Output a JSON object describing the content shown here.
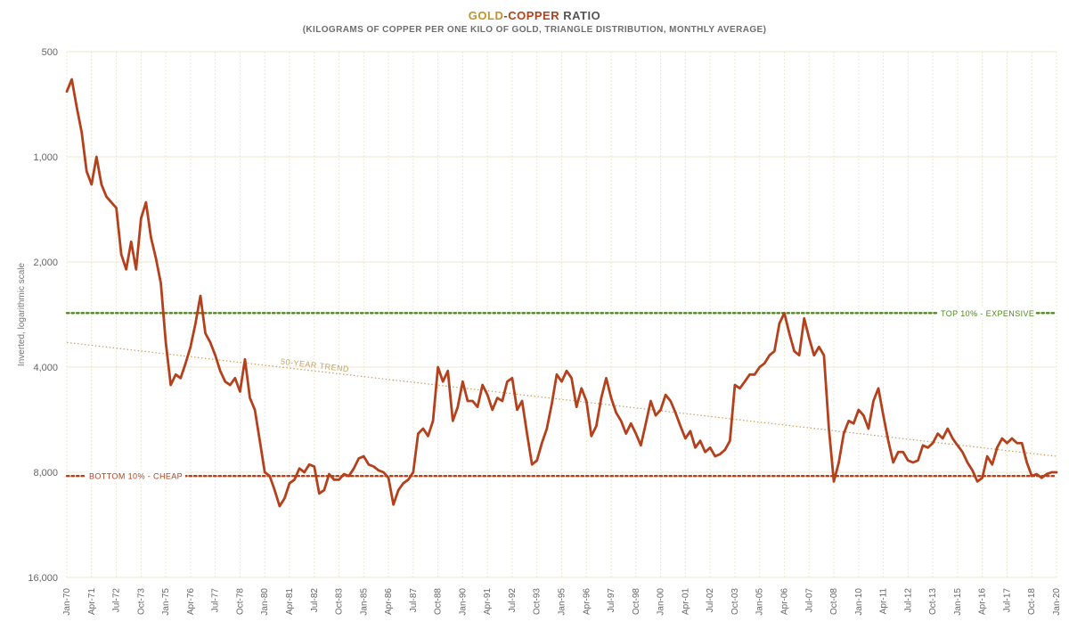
{
  "title_parts": {
    "gold": "GOLD",
    "dash": "-",
    "copper": "COPPER",
    "ratio": " RATIO"
  },
  "subtitle": "(KILOGRAMS OF COPPER PER ONE KILO OF GOLD, TRIANGLE DISTRIBUTION, MONTHLY AVERAGE)",
  "colors": {
    "gold": "#c0952f",
    "copper": "#b5401c",
    "text": "#555555",
    "series": "#b5401c",
    "trend": "#c7a15e",
    "top10": "#4f8a1f",
    "bottom10": "#b5401c",
    "grid": "#ece9cf"
  },
  "chart_data": {
    "type": "line",
    "title": "GOLD-COPPER RATIO",
    "subtitle": "(KILOGRAMS OF COPPER PER ONE KILO OF GOLD, TRIANGLE DISTRIBUTION, MONTHLY AVERAGE)",
    "ylabel": "Inverted, logarithmic scale",
    "yscale": "log2, inverted",
    "ylim": [
      500,
      16000
    ],
    "y_ticks": [
      500,
      1000,
      2000,
      4000,
      8000,
      16000
    ],
    "y_tick_labels": [
      "500",
      "1,000",
      "2,000",
      "4,000",
      "8,000",
      "16,000"
    ],
    "xlim": [
      "1970-01",
      "2020-01"
    ],
    "x_tick_labels": [
      "Jan-70",
      "Apr-71",
      "Jul-72",
      "Oct-73",
      "Jan-75",
      "Apr-76",
      "Jul-77",
      "Oct-78",
      "Jan-80",
      "Apr-81",
      "Jul-82",
      "Oct-83",
      "Jan-85",
      "Apr-86",
      "Jul-87",
      "Oct-88",
      "Jan-90",
      "Apr-91",
      "Jul-92",
      "Oct-93",
      "Jan-95",
      "Apr-96",
      "Jul-97",
      "Oct-98",
      "Jan-00",
      "Apr-01",
      "Jul-02",
      "Oct-03",
      "Jan-05",
      "Apr-06",
      "Jul-07",
      "Oct-08",
      "Jan-10",
      "Apr-11",
      "Jul-12",
      "Oct-13",
      "Jan-15",
      "Apr-16",
      "Jul-17",
      "Oct-18",
      "Jan-20"
    ],
    "grid": true,
    "series": [
      {
        "name": "",
        "points": [
          [
            "1970-01",
            650
          ],
          [
            "1970-04",
            600
          ],
          [
            "1970-07",
            720
          ],
          [
            "1970-10",
            850
          ],
          [
            "1971-01",
            1100
          ],
          [
            "1971-04",
            1200
          ],
          [
            "1971-07",
            1000
          ],
          [
            "1971-10",
            1200
          ],
          [
            "1972-01",
            1300
          ],
          [
            "1972-04",
            1350
          ],
          [
            "1972-07",
            1400
          ],
          [
            "1972-10",
            1900
          ],
          [
            "1973-01",
            2100
          ],
          [
            "1973-04",
            1750
          ],
          [
            "1973-07",
            2100
          ],
          [
            "1973-10",
            1500
          ],
          [
            "1974-01",
            1350
          ],
          [
            "1974-04",
            1700
          ],
          [
            "1974-07",
            1950
          ],
          [
            "1974-10",
            2300
          ],
          [
            "1975-01",
            3400
          ],
          [
            "1975-04",
            4500
          ],
          [
            "1975-07",
            4200
          ],
          [
            "1975-10",
            4300
          ],
          [
            "1976-01",
            3900
          ],
          [
            "1976-04",
            3500
          ],
          [
            "1976-07",
            3000
          ],
          [
            "1976-10",
            2500
          ],
          [
            "1977-01",
            3200
          ],
          [
            "1977-04",
            3400
          ],
          [
            "1977-07",
            3700
          ],
          [
            "1977-10",
            4100
          ],
          [
            "1978-01",
            4400
          ],
          [
            "1978-04",
            4500
          ],
          [
            "1978-07",
            4300
          ],
          [
            "1978-10",
            4700
          ],
          [
            "1979-01",
            3800
          ],
          [
            "1979-04",
            4900
          ],
          [
            "1979-07",
            5300
          ],
          [
            "1979-10",
            6500
          ],
          [
            "1980-01",
            8000
          ],
          [
            "1980-04",
            8200
          ],
          [
            "1980-07",
            9000
          ],
          [
            "1980-10",
            10000
          ],
          [
            "1981-01",
            9500
          ],
          [
            "1981-04",
            8600
          ],
          [
            "1981-07",
            8400
          ],
          [
            "1981-10",
            7800
          ],
          [
            "1982-01",
            8000
          ],
          [
            "1982-04",
            7600
          ],
          [
            "1982-07",
            7700
          ],
          [
            "1982-10",
            9200
          ],
          [
            "1983-01",
            9000
          ],
          [
            "1983-04",
            8100
          ],
          [
            "1983-07",
            8400
          ],
          [
            "1983-10",
            8400
          ],
          [
            "1984-01",
            8100
          ],
          [
            "1984-04",
            8200
          ],
          [
            "1984-07",
            7800
          ],
          [
            "1984-10",
            7300
          ],
          [
            "1985-01",
            7200
          ],
          [
            "1985-04",
            7600
          ],
          [
            "1985-07",
            7700
          ],
          [
            "1985-10",
            7900
          ],
          [
            "1986-01",
            8000
          ],
          [
            "1986-04",
            8300
          ],
          [
            "1986-07",
            9900
          ],
          [
            "1986-10",
            9000
          ],
          [
            "1987-01",
            8600
          ],
          [
            "1987-04",
            8400
          ],
          [
            "1987-07",
            8000
          ],
          [
            "1987-10",
            6200
          ],
          [
            "1988-01",
            6000
          ],
          [
            "1988-04",
            6300
          ],
          [
            "1988-07",
            5700
          ],
          [
            "1988-10",
            4000
          ],
          [
            "1989-01",
            4400
          ],
          [
            "1989-04",
            4100
          ],
          [
            "1989-07",
            5700
          ],
          [
            "1989-10",
            5200
          ],
          [
            "1990-01",
            4400
          ],
          [
            "1990-04",
            5000
          ],
          [
            "1990-07",
            5000
          ],
          [
            "1990-10",
            5200
          ],
          [
            "1991-01",
            4500
          ],
          [
            "1991-04",
            4800
          ],
          [
            "1991-07",
            5300
          ],
          [
            "1991-10",
            4900
          ],
          [
            "1992-01",
            5000
          ],
          [
            "1992-04",
            4400
          ],
          [
            "1992-07",
            4300
          ],
          [
            "1992-10",
            5300
          ],
          [
            "1993-01",
            5000
          ],
          [
            "1993-04",
            6200
          ],
          [
            "1993-07",
            7600
          ],
          [
            "1993-10",
            7400
          ],
          [
            "1994-01",
            6600
          ],
          [
            "1994-04",
            6000
          ],
          [
            "1994-07",
            5100
          ],
          [
            "1994-10",
            4200
          ],
          [
            "1995-01",
            4400
          ],
          [
            "1995-04",
            4100
          ],
          [
            "1995-07",
            4300
          ],
          [
            "1995-10",
            5200
          ],
          [
            "1996-01",
            4600
          ],
          [
            "1996-04",
            5000
          ],
          [
            "1996-07",
            6300
          ],
          [
            "1996-10",
            5900
          ],
          [
            "1997-01",
            4900
          ],
          [
            "1997-04",
            4300
          ],
          [
            "1997-07",
            4900
          ],
          [
            "1997-10",
            5400
          ],
          [
            "1998-01",
            5700
          ],
          [
            "1998-04",
            6200
          ],
          [
            "1998-07",
            5800
          ],
          [
            "1998-10",
            6200
          ],
          [
            "1999-01",
            6700
          ],
          [
            "1999-04",
            5800
          ],
          [
            "1999-07",
            5000
          ],
          [
            "1999-10",
            5500
          ],
          [
            "2000-01",
            5300
          ],
          [
            "2000-04",
            4800
          ],
          [
            "2000-07",
            5000
          ],
          [
            "2000-10",
            5400
          ],
          [
            "2001-01",
            5900
          ],
          [
            "2001-04",
            6400
          ],
          [
            "2001-07",
            6100
          ],
          [
            "2001-10",
            6800
          ],
          [
            "2002-01",
            6500
          ],
          [
            "2002-04",
            7000
          ],
          [
            "2002-07",
            6800
          ],
          [
            "2002-10",
            7200
          ],
          [
            "2003-01",
            7100
          ],
          [
            "2003-04",
            6900
          ],
          [
            "2003-07",
            6500
          ],
          [
            "2003-10",
            4500
          ],
          [
            "2004-01",
            4600
          ],
          [
            "2004-04",
            4400
          ],
          [
            "2004-07",
            4200
          ],
          [
            "2004-10",
            4200
          ],
          [
            "2005-01",
            4000
          ],
          [
            "2005-04",
            3900
          ],
          [
            "2005-07",
            3700
          ],
          [
            "2005-10",
            3600
          ],
          [
            "2006-01",
            3000
          ],
          [
            "2006-04",
            2800
          ],
          [
            "2006-07",
            3200
          ],
          [
            "2006-10",
            3600
          ],
          [
            "2007-01",
            3700
          ],
          [
            "2007-04",
            2900
          ],
          [
            "2007-07",
            3300
          ],
          [
            "2007-10",
            3700
          ],
          [
            "2008-01",
            3500
          ],
          [
            "2008-04",
            3700
          ],
          [
            "2008-07",
            6000
          ],
          [
            "2008-10",
            8500
          ],
          [
            "2009-01",
            7500
          ],
          [
            "2009-04",
            6200
          ],
          [
            "2009-07",
            5700
          ],
          [
            "2009-10",
            5800
          ],
          [
            "2010-01",
            5300
          ],
          [
            "2010-04",
            5500
          ],
          [
            "2010-07",
            6000
          ],
          [
            "2010-10",
            5000
          ],
          [
            "2011-01",
            4600
          ],
          [
            "2011-04",
            5500
          ],
          [
            "2011-07",
            6500
          ],
          [
            "2011-10",
            7500
          ],
          [
            "2012-01",
            7000
          ],
          [
            "2012-04",
            7000
          ],
          [
            "2012-07",
            7400
          ],
          [
            "2012-10",
            7500
          ],
          [
            "2013-01",
            7400
          ],
          [
            "2013-04",
            6700
          ],
          [
            "2013-07",
            6800
          ],
          [
            "2013-10",
            6600
          ],
          [
            "2014-01",
            6200
          ],
          [
            "2014-04",
            6400
          ],
          [
            "2014-07",
            6000
          ],
          [
            "2014-10",
            6400
          ],
          [
            "2015-01",
            6700
          ],
          [
            "2015-04",
            7000
          ],
          [
            "2015-07",
            7500
          ],
          [
            "2015-10",
            7900
          ],
          [
            "2016-01",
            8500
          ],
          [
            "2016-04",
            8300
          ],
          [
            "2016-07",
            7200
          ],
          [
            "2016-10",
            7600
          ],
          [
            "2017-01",
            6800
          ],
          [
            "2017-04",
            6400
          ],
          [
            "2017-07",
            6600
          ],
          [
            "2017-10",
            6400
          ],
          [
            "2018-01",
            6600
          ],
          [
            "2018-04",
            6600
          ],
          [
            "2018-07",
            7500
          ],
          [
            "2018-10",
            8200
          ],
          [
            "2019-01",
            8100
          ],
          [
            "2019-04",
            8300
          ],
          [
            "2019-07",
            8100
          ],
          [
            "2019-10",
            8000
          ],
          [
            "2020-01",
            8000
          ]
        ]
      }
    ],
    "reference_lines": [
      {
        "label": "TOP 10% - EXPENSIVE",
        "y": 2800,
        "style": "dotted",
        "color": "#4f8a1f"
      },
      {
        "label": "BOTTOM 10% - CHEAP",
        "y": 8200,
        "style": "dotted",
        "color": "#b5401c"
      }
    ],
    "trend": {
      "label": "50-YEAR TREND",
      "start": [
        "1970-01",
        3400
      ],
      "end": [
        "2020-01",
        7200
      ],
      "style": "dotted",
      "color": "#c7a15e"
    }
  }
}
